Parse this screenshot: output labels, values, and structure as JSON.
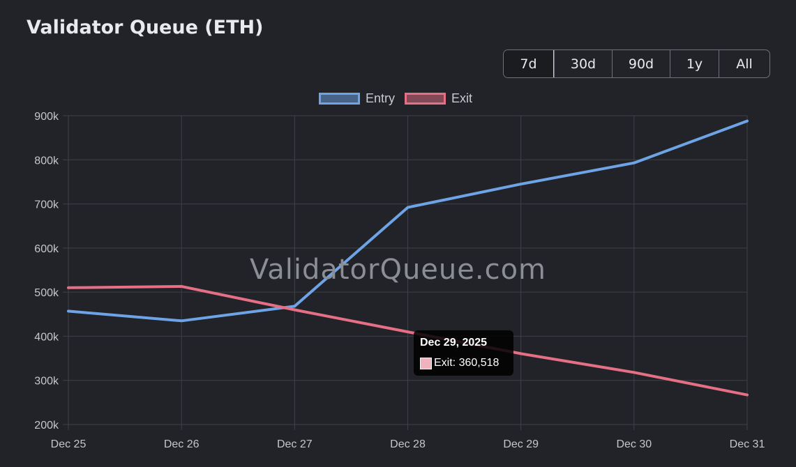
{
  "header": {
    "title": "Validator Queue (ETH)"
  },
  "range_selector": {
    "options": [
      "7d",
      "30d",
      "90d",
      "1y",
      "All"
    ],
    "active": "7d"
  },
  "watermark": "ValidatorQueue.com",
  "tooltip": {
    "title": "Dec 29, 2025",
    "label": "Exit: 360,518",
    "color": "#f0b3bd"
  },
  "colors": {
    "entry": "#6ea4e6",
    "exit": "#e57086",
    "grid": "#3e4148",
    "tick": "#c4c7cc"
  },
  "chart_data": {
    "type": "line",
    "title": "Validator Queue (ETH)",
    "x": [
      "Dec 25",
      "Dec 26",
      "Dec 27",
      "Dec 28",
      "Dec 29",
      "Dec 30",
      "Dec 31"
    ],
    "ylim": [
      200000,
      900000
    ],
    "yticks": [
      "900k",
      "800k",
      "700k",
      "600k",
      "500k",
      "400k",
      "300k",
      "200k"
    ],
    "legend_position": "top",
    "series": [
      {
        "name": "Entry",
        "values": [
          457000,
          435000,
          468000,
          692000,
          745000,
          793000,
          888000
        ]
      },
      {
        "name": "Exit",
        "values": [
          510000,
          513000,
          460000,
          410000,
          360518,
          318000,
          267000
        ]
      }
    ]
  }
}
